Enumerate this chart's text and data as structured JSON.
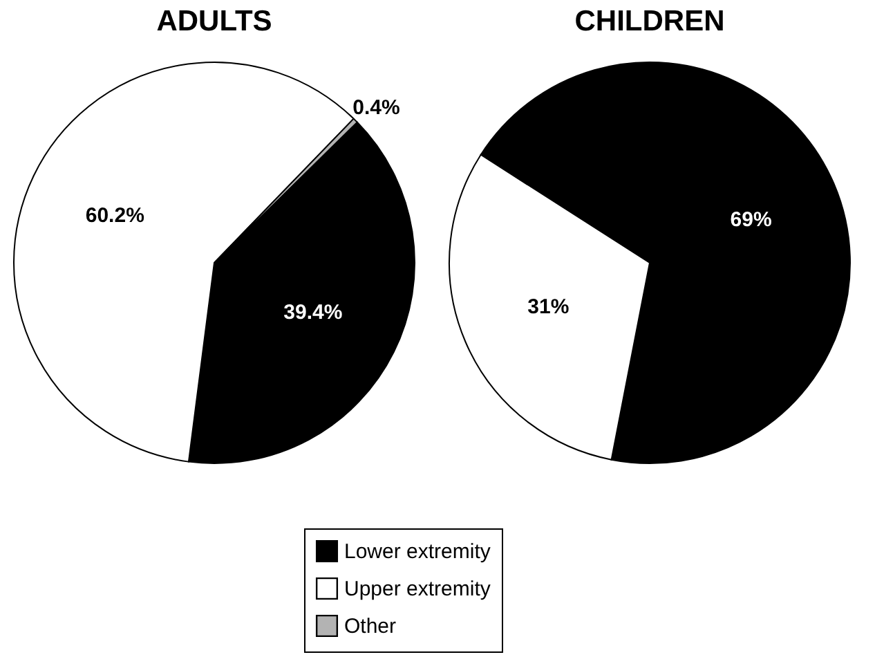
{
  "chart_data": [
    {
      "type": "pie",
      "title": "ADULTS",
      "categories": [
        "Lower extremity",
        "Upper extremity",
        "Other"
      ],
      "values": [
        39.4,
        60.2,
        0.4
      ],
      "colors": [
        "#000000",
        "#ffffff",
        "#b3b3b3"
      ],
      "value_labels": [
        "39.4%",
        "60.2%",
        "0.4%"
      ],
      "legend": "bottom"
    },
    {
      "type": "pie",
      "title": "CHILDREN",
      "categories": [
        null,
        null
      ],
      "values": [
        69,
        31
      ],
      "colors": [
        "#000000",
        "#ffffff"
      ],
      "value_labels": [
        "69%",
        "31%"
      ]
    }
  ]
}
